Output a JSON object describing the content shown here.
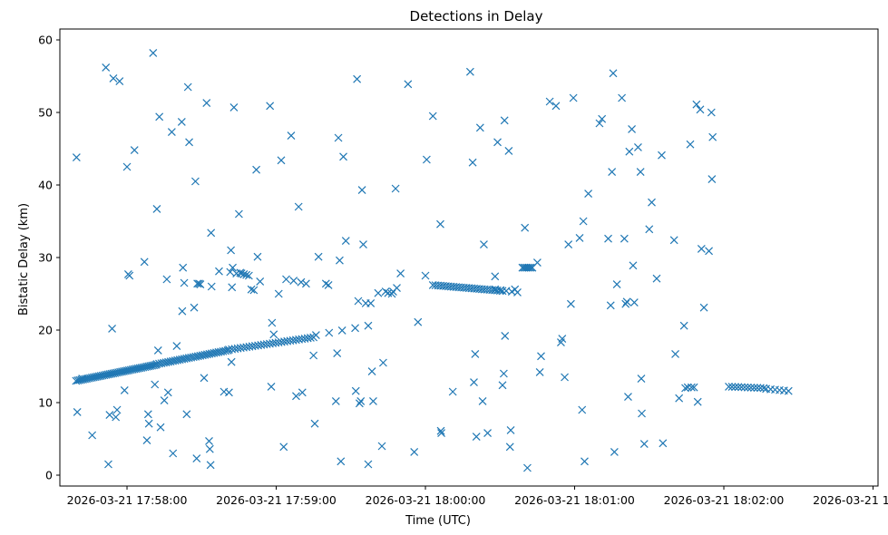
{
  "chart_data": {
    "type": "scatter",
    "title": "Detections in Delay",
    "xlabel": "Time (UTC)",
    "ylabel": "Bistatic Delay (km)",
    "x_tick_labels": [
      "2026-03-21 17:58:00",
      "2026-03-21 17:59:00",
      "2026-03-21 18:00:00",
      "2026-03-21 18:01:00",
      "2026-03-21 18:02:00",
      "2026-03-21 18:03:00"
    ],
    "x_ticks_seconds": [
      0,
      60,
      120,
      180,
      240,
      300
    ],
    "xlim_seconds": [
      -27,
      302
    ],
    "y_ticks": [
      0,
      10,
      20,
      30,
      40,
      50,
      60
    ],
    "ylim": [
      -1.5,
      61.5
    ],
    "marker": "x",
    "marker_color": "#1f77b4",
    "grid": false,
    "tracks": [
      {
        "x0": -20.5,
        "x1": 11.5,
        "y0": 13.0,
        "y1": 15.2,
        "n": 46
      },
      {
        "x0": 12,
        "x1": 40.5,
        "y0": 15.3,
        "y1": 17.2,
        "n": 32
      },
      {
        "x0": 41,
        "x1": 75,
        "y0": 17.3,
        "y1": 19.0,
        "n": 30
      },
      {
        "x0": 76,
        "x1": 97,
        "y0": 19.3,
        "y1": 20.6,
        "n": 5
      },
      {
        "x0": 123,
        "x1": 151,
        "y0": 26.2,
        "y1": 25.4,
        "n": 28
      },
      {
        "x0": 148,
        "x1": 157,
        "y0": 25.6,
        "y1": 25.2,
        "n": 5
      },
      {
        "x0": 159,
        "x1": 163,
        "y0": 28.6,
        "y1": 28.6,
        "n": 7
      },
      {
        "x0": 242,
        "x1": 256,
        "y0": 12.2,
        "y1": 12.0,
        "n": 12
      },
      {
        "x0": 257,
        "x1": 266,
        "y0": 11.9,
        "y1": 11.6,
        "n": 6
      }
    ],
    "points": [
      [
        -20.3,
        43.8
      ],
      [
        -20,
        8.7
      ],
      [
        -18,
        13.3
      ],
      [
        -14,
        5.5
      ],
      [
        -8.5,
        56.2
      ],
      [
        -7.5,
        1.5
      ],
      [
        -7,
        8.3
      ],
      [
        -6,
        20.2
      ],
      [
        -5.5,
        54.7
      ],
      [
        -4.5,
        8.0
      ],
      [
        -4,
        9.0
      ],
      [
        -3,
        54.3
      ],
      [
        -1,
        11.7
      ],
      [
        0,
        42.5
      ],
      [
        0.5,
        27.7
      ],
      [
        1,
        27.5
      ],
      [
        3,
        44.8
      ],
      [
        7,
        29.4
      ],
      [
        8,
        4.8
      ],
      [
        8.5,
        8.4
      ],
      [
        8.8,
        7.1
      ],
      [
        10.5,
        58.2
      ],
      [
        11.2,
        12.5
      ],
      [
        12,
        36.7
      ],
      [
        12.5,
        17.2
      ],
      [
        13,
        49.4
      ],
      [
        13.5,
        6.6
      ],
      [
        15,
        10.3
      ],
      [
        16,
        27.0
      ],
      [
        16.5,
        11.4
      ],
      [
        18,
        47.3
      ],
      [
        18.5,
        3.0
      ],
      [
        20,
        17.8
      ],
      [
        22,
        48.7
      ],
      [
        22.2,
        22.6
      ],
      [
        22.5,
        28.6
      ],
      [
        23,
        26.5
      ],
      [
        24,
        8.4
      ],
      [
        24.5,
        53.5
      ],
      [
        25,
        45.9
      ],
      [
        27,
        23.1
      ],
      [
        27.5,
        40.5
      ],
      [
        28,
        2.3
      ],
      [
        28.3,
        26.4
      ],
      [
        29,
        26.4
      ],
      [
        29.5,
        26.3
      ],
      [
        31,
        13.4
      ],
      [
        32,
        51.3
      ],
      [
        33,
        4.7
      ],
      [
        33.3,
        3.6
      ],
      [
        33.6,
        1.4
      ],
      [
        33.8,
        33.4
      ],
      [
        34,
        26.0
      ],
      [
        37,
        28.1
      ],
      [
        39,
        11.5
      ],
      [
        41,
        11.4
      ],
      [
        41.5,
        28.0
      ],
      [
        41.8,
        31.0
      ],
      [
        42,
        15.6
      ],
      [
        42.2,
        25.9
      ],
      [
        42.5,
        28.6
      ],
      [
        43,
        50.7
      ],
      [
        44,
        27.8
      ],
      [
        45,
        36.0
      ],
      [
        45.5,
        27.9
      ],
      [
        46,
        27.8
      ],
      [
        47,
        27.7
      ],
      [
        48,
        27.6
      ],
      [
        49,
        27.5
      ],
      [
        50,
        25.6
      ],
      [
        51,
        25.5
      ],
      [
        52,
        42.1
      ],
      [
        52.5,
        30.1
      ],
      [
        53.5,
        26.7
      ],
      [
        57.5,
        50.9
      ],
      [
        58,
        12.2
      ],
      [
        58.3,
        21.0
      ],
      [
        59,
        19.4
      ],
      [
        61,
        25.0
      ],
      [
        62,
        43.4
      ],
      [
        63,
        3.9
      ],
      [
        64,
        27.0
      ],
      [
        66,
        46.8
      ],
      [
        67,
        26.8
      ],
      [
        68,
        10.9
      ],
      [
        69,
        37.0
      ],
      [
        70,
        26.6
      ],
      [
        70.5,
        11.4
      ],
      [
        72,
        26.4
      ],
      [
        75,
        16.5
      ],
      [
        75.5,
        7.1
      ],
      [
        77,
        30.1
      ],
      [
        80,
        26.4
      ],
      [
        81,
        26.2
      ],
      [
        84,
        10.2
      ],
      [
        84.5,
        16.8
      ],
      [
        85,
        46.5
      ],
      [
        85.5,
        29.6
      ],
      [
        86,
        1.9
      ],
      [
        87,
        43.9
      ],
      [
        88,
        32.3
      ],
      [
        92,
        11.6
      ],
      [
        92.5,
        54.6
      ],
      [
        93,
        24.0
      ],
      [
        93.5,
        9.9
      ],
      [
        94,
        10.2
      ],
      [
        94.5,
        39.3
      ],
      [
        95,
        31.8
      ],
      [
        96,
        23.7
      ],
      [
        97,
        1.5
      ],
      [
        98,
        23.7
      ],
      [
        98.5,
        14.3
      ],
      [
        99,
        10.2
      ],
      [
        101,
        25.1
      ],
      [
        102.5,
        4.0
      ],
      [
        103,
        15.5
      ],
      [
        104,
        25.3
      ],
      [
        105,
        25.1
      ],
      [
        106.5,
        25.0
      ],
      [
        107,
        25.3
      ],
      [
        108,
        39.5
      ],
      [
        108.5,
        25.8
      ],
      [
        110,
        27.8
      ],
      [
        113,
        53.9
      ],
      [
        115.5,
        3.2
      ],
      [
        117,
        21.1
      ],
      [
        120,
        27.5
      ],
      [
        120.5,
        43.5
      ],
      [
        123,
        49.5
      ],
      [
        126,
        34.6
      ],
      [
        126.2,
        6.1
      ],
      [
        126.4,
        5.8
      ],
      [
        131,
        11.5
      ],
      [
        138,
        55.6
      ],
      [
        139,
        43.1
      ],
      [
        139.5,
        12.8
      ],
      [
        140,
        16.7
      ],
      [
        140.5,
        5.3
      ],
      [
        142,
        47.9
      ],
      [
        143,
        10.2
      ],
      [
        143.5,
        31.8
      ],
      [
        145,
        5.8
      ],
      [
        148,
        27.4
      ],
      [
        149,
        45.9
      ],
      [
        151,
        12.4
      ],
      [
        151.5,
        14.0
      ],
      [
        151.8,
        48.9
      ],
      [
        152,
        19.2
      ],
      [
        153.5,
        44.7
      ],
      [
        154,
        3.9
      ],
      [
        154.3,
        6.2
      ],
      [
        156,
        25.6
      ],
      [
        160,
        34.1
      ],
      [
        161,
        1.0
      ],
      [
        165,
        29.3
      ],
      [
        166,
        14.2
      ],
      [
        166.5,
        16.4
      ],
      [
        170,
        51.5
      ],
      [
        172.5,
        50.9
      ],
      [
        174.5,
        18.3
      ],
      [
        175,
        18.8
      ],
      [
        176,
        13.5
      ],
      [
        177.5,
        31.8
      ],
      [
        178.5,
        23.6
      ],
      [
        179.5,
        52.0
      ],
      [
        182,
        32.7
      ],
      [
        183,
        9.0
      ],
      [
        183.5,
        35.0
      ],
      [
        184,
        1.9
      ],
      [
        185.5,
        38.8
      ],
      [
        190,
        48.5
      ],
      [
        191,
        49.1
      ],
      [
        193.5,
        32.6
      ],
      [
        194.5,
        23.4
      ],
      [
        195,
        41.8
      ],
      [
        195.5,
        55.4
      ],
      [
        196,
        3.2
      ],
      [
        197,
        26.3
      ],
      [
        199,
        52.0
      ],
      [
        200,
        32.6
      ],
      [
        200.5,
        23.6
      ],
      [
        201,
        23.9
      ],
      [
        201.5,
        10.8
      ],
      [
        202,
        44.6
      ],
      [
        203,
        47.7
      ],
      [
        203.5,
        28.9
      ],
      [
        204,
        23.8
      ],
      [
        205.5,
        45.2
      ],
      [
        206.5,
        41.8
      ],
      [
        206.8,
        13.3
      ],
      [
        207,
        8.5
      ],
      [
        208,
        4.3
      ],
      [
        210,
        33.9
      ],
      [
        211,
        37.6
      ],
      [
        213,
        27.1
      ],
      [
        215,
        44.1
      ],
      [
        215.5,
        4.4
      ],
      [
        220,
        32.4
      ],
      [
        220.5,
        16.7
      ],
      [
        222,
        10.6
      ],
      [
        224,
        20.6
      ],
      [
        224.5,
        12.0
      ],
      [
        225.5,
        12.1
      ],
      [
        226.5,
        45.6
      ],
      [
        227,
        12.1
      ],
      [
        228,
        12.1
      ],
      [
        229,
        51.1
      ],
      [
        229.5,
        10.1
      ],
      [
        230.5,
        50.4
      ],
      [
        231,
        31.2
      ],
      [
        232,
        23.1
      ],
      [
        234,
        30.9
      ],
      [
        235,
        50.0
      ],
      [
        235.2,
        40.8
      ],
      [
        235.5,
        46.6
      ]
    ]
  }
}
